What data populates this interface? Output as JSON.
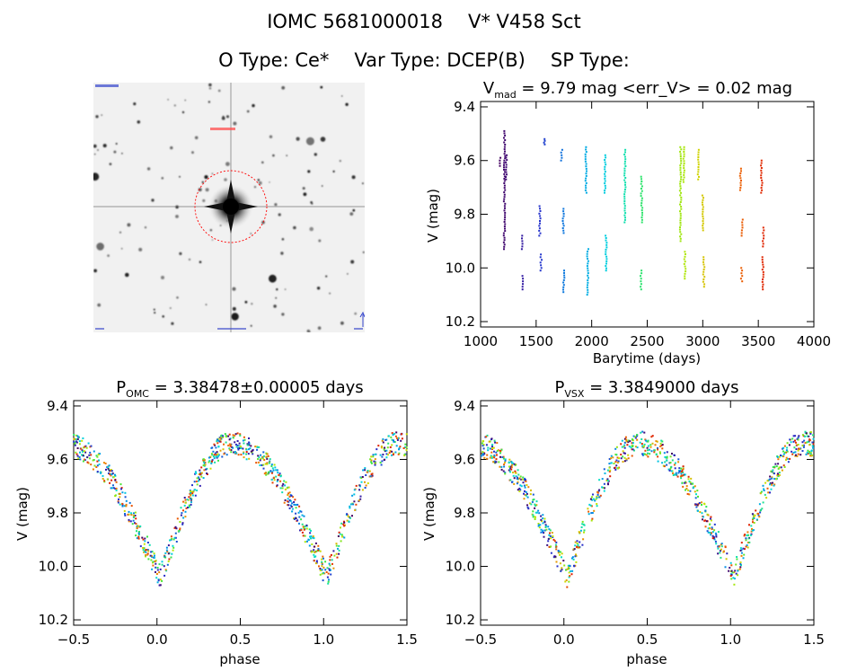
{
  "header": {
    "object_id": "IOMC 5681000018",
    "star_name": "V* V458 Sct",
    "o_type": "O Type: Ce*",
    "var_type": "Var Type: DCEP(B)",
    "sp_type": "SP Type:"
  },
  "image_panel": {
    "icon": "star-field-thumbnail",
    "marker_color": "#ff0000"
  },
  "chart_data": [
    {
      "type": "scatter",
      "id": "lightcurve",
      "title_main": "V",
      "title_sub": "mad",
      "title_rest": " = 9.79 mag <err_V> = 0.02 mag",
      "xlabel": "Barytime (days)",
      "ylabel": "V (mag)",
      "xlim": [
        1000,
        4000
      ],
      "ylim": [
        10.22,
        9.38
      ],
      "xticks": [
        "1000",
        "1500",
        "2000",
        "2500",
        "3000",
        "3500",
        "4000"
      ],
      "xtick_values": [
        1000,
        1500,
        2000,
        2500,
        3000,
        3500,
        4000
      ],
      "yticks": [
        "9.4",
        "9.6",
        "9.8",
        "10.0",
        "10.2"
      ],
      "ytick_values": [
        9.4,
        9.6,
        9.8,
        10.0,
        10.2
      ],
      "grid": false,
      "colormap": "rainbow (time-coded)",
      "points": [
        {
          "t": 1175,
          "v_top": 9.59,
          "v_bot": 9.62
        },
        {
          "t": 1215,
          "v_top": 9.49,
          "v_bot": 9.93
        },
        {
          "t": 1232,
          "v_top": 9.58,
          "v_bot": 9.67
        },
        {
          "t": 1375,
          "v_top": 9.88,
          "v_bot": 9.93
        },
        {
          "t": 1380,
          "v_top": 10.03,
          "v_bot": 10.08
        },
        {
          "t": 1533,
          "v_top": 9.77,
          "v_bot": 9.88
        },
        {
          "t": 1545,
          "v_top": 9.95,
          "v_bot": 10.01
        },
        {
          "t": 1575,
          "v_top": 9.52,
          "v_bot": 9.54
        },
        {
          "t": 1730,
          "v_top": 9.56,
          "v_bot": 9.6
        },
        {
          "t": 1745,
          "v_top": 9.78,
          "v_bot": 9.87
        },
        {
          "t": 1750,
          "v_top": 10.01,
          "v_bot": 10.09
        },
        {
          "t": 1950,
          "v_top": 9.55,
          "v_bot": 9.72
        },
        {
          "t": 1965,
          "v_top": 9.93,
          "v_bot": 10.1
        },
        {
          "t": 2120,
          "v_top": 9.58,
          "v_bot": 9.72
        },
        {
          "t": 2130,
          "v_top": 9.88,
          "v_bot": 10.01
        },
        {
          "t": 2300,
          "v_top": 9.56,
          "v_bot": 9.83
        },
        {
          "t": 2450,
          "v_top": 9.66,
          "v_bot": 9.83
        },
        {
          "t": 2445,
          "v_top": 10.01,
          "v_bot": 10.08
        },
        {
          "t": 2800,
          "v_top": 9.55,
          "v_bot": 9.9
        },
        {
          "t": 2830,
          "v_top": 9.55,
          "v_bot": 9.68
        },
        {
          "t": 2840,
          "v_top": 9.94,
          "v_bot": 10.04
        },
        {
          "t": 2960,
          "v_top": 9.56,
          "v_bot": 9.67
        },
        {
          "t": 3000,
          "v_top": 9.73,
          "v_bot": 9.86
        },
        {
          "t": 3010,
          "v_top": 9.96,
          "v_bot": 10.07
        },
        {
          "t": 3340,
          "v_top": 9.63,
          "v_bot": 9.71
        },
        {
          "t": 3355,
          "v_top": 9.82,
          "v_bot": 9.88
        },
        {
          "t": 3350,
          "v_top": 10.0,
          "v_bot": 10.05
        },
        {
          "t": 3530,
          "v_top": 9.6,
          "v_bot": 9.72
        },
        {
          "t": 3545,
          "v_top": 9.85,
          "v_bot": 9.92
        },
        {
          "t": 3540,
          "v_top": 9.96,
          "v_bot": 10.08
        }
      ]
    },
    {
      "type": "scatter",
      "id": "phase_omc",
      "title_main": "P",
      "title_sub": "OMC",
      "title_rest": " = 3.38478±0.00005 days",
      "xlabel": "phase",
      "ylabel": "V (mag)",
      "xlim": [
        -0.5,
        1.5
      ],
      "ylim": [
        10.22,
        9.38
      ],
      "xticks": [
        "−0.5",
        "0.0",
        "0.5",
        "1.0",
        "1.5"
      ],
      "xtick_values": [
        -0.5,
        0.0,
        0.5,
        1.0,
        1.5
      ],
      "yticks": [
        "9.4",
        "9.6",
        "9.8",
        "10.0",
        "10.2"
      ],
      "ytick_values": [
        9.4,
        9.6,
        9.8,
        10.0,
        10.2
      ],
      "curve": {
        "mean": 9.79,
        "amplitude": 0.25,
        "max_phase": 0.45,
        "min_phase": 0.02
      }
    },
    {
      "type": "scatter",
      "id": "phase_vsx",
      "title_main": "P",
      "title_sub": "VSX",
      "title_rest": " = 3.3849000 days",
      "xlabel": "phase",
      "ylabel": "V (mag)",
      "xlim": [
        -0.5,
        1.5
      ],
      "ylim": [
        10.22,
        9.38
      ],
      "xticks": [
        "−0.5",
        "0.0",
        "0.5",
        "1.0",
        "1.5"
      ],
      "xtick_values": [
        -0.5,
        0.0,
        0.5,
        1.0,
        1.5
      ],
      "yticks": [
        "9.4",
        "9.6",
        "9.8",
        "10.0",
        "10.2"
      ],
      "ytick_values": [
        9.4,
        9.6,
        9.8,
        10.0,
        10.2
      ],
      "curve": {
        "mean": 9.79,
        "amplitude": 0.25,
        "max_phase": 0.45,
        "min_phase": 0.02
      }
    }
  ]
}
